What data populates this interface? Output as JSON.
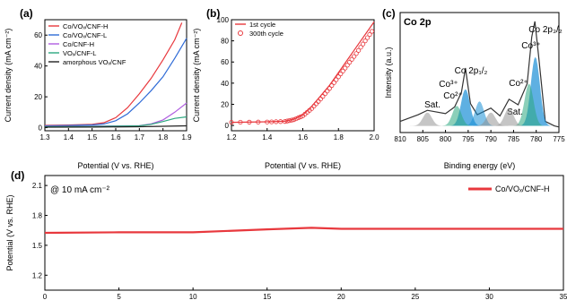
{
  "chart_data": [
    {
      "type": "line",
      "panel_label": "(a)",
      "xlabel": "Potential (V vs. RHE)",
      "ylabel": "Current density (mA cm⁻²)",
      "xlim": [
        1.3,
        1.9
      ],
      "ylim": [
        -2,
        70
      ],
      "xticks": [
        "1.3",
        "1.4",
        "1.5",
        "1.6",
        "1.7",
        "1.8",
        "1.9"
      ],
      "yticks": [
        "0",
        "20",
        "40",
        "60"
      ],
      "legend_position": "top-left",
      "series": [
        {
          "name": "Co/VOₓ/CNF-H",
          "color": "#e8383d",
          "x": [
            1.3,
            1.4,
            1.5,
            1.55,
            1.6,
            1.65,
            1.7,
            1.75,
            1.8,
            1.85,
            1.88
          ],
          "y": [
            1.5,
            1.7,
            2.2,
            3.2,
            6.5,
            13,
            22,
            32,
            44,
            57,
            68
          ]
        },
        {
          "name": "Co/VOₓ/CNF-L",
          "color": "#2f6bd6",
          "x": [
            1.3,
            1.4,
            1.5,
            1.55,
            1.6,
            1.65,
            1.7,
            1.75,
            1.8,
            1.85,
            1.9
          ],
          "y": [
            1.2,
            1.4,
            1.8,
            2.4,
            4.5,
            9,
            16,
            24,
            33,
            45,
            58
          ]
        },
        {
          "name": "Co/CNF-H",
          "color": "#b05ee0",
          "x": [
            1.3,
            1.5,
            1.7,
            1.75,
            1.8,
            1.85,
            1.9
          ],
          "y": [
            0.8,
            1.0,
            1.3,
            2.5,
            5,
            10,
            16
          ]
        },
        {
          "name": "VOₓ/CNF-L",
          "color": "#2ca87f",
          "x": [
            1.3,
            1.5,
            1.7,
            1.75,
            1.8,
            1.85,
            1.9
          ],
          "y": [
            0.6,
            0.8,
            1.2,
            2.2,
            4,
            6,
            7
          ]
        },
        {
          "name": "amorphous VOₓ/CNF",
          "color": "#222222",
          "x": [
            1.3,
            1.5,
            1.7,
            1.8,
            1.9
          ],
          "y": [
            0.3,
            0.4,
            0.6,
            0.9,
            1.2
          ]
        }
      ]
    },
    {
      "type": "line",
      "panel_label": "(b)",
      "xlabel": "Potential (V vs. RHE)",
      "ylabel": "Current density (mA cm⁻²)",
      "xlim": [
        1.2,
        2.0
      ],
      "ylim": [
        -5,
        100
      ],
      "xticks": [
        "1.2",
        "1.4",
        "1.6",
        "1.8",
        "2.0"
      ],
      "yticks": [
        "0",
        "20",
        "40",
        "60",
        "80",
        "100"
      ],
      "legend_position": "top-left",
      "series": [
        {
          "name": "1st cycle",
          "style": "line",
          "color": "#e8383d",
          "x": [
            1.2,
            1.4,
            1.5,
            1.55,
            1.6,
            1.65,
            1.7,
            1.75,
            1.8,
            1.85,
            1.9,
            1.95,
            2.0
          ],
          "y": [
            3,
            3.5,
            4,
            6,
            10,
            18,
            28,
            38,
            50,
            62,
            74,
            86,
            98
          ]
        },
        {
          "name": "300th cycle",
          "style": "open-circle",
          "color": "#e8383d",
          "x": [
            1.2,
            1.4,
            1.5,
            1.55,
            1.6,
            1.65,
            1.7,
            1.75,
            1.8,
            1.85,
            1.9,
            1.95,
            2.0
          ],
          "y": [
            3,
            3.3,
            3.8,
            5.5,
            9,
            16,
            25,
            35,
            46,
            57,
            68,
            80,
            92
          ]
        }
      ]
    },
    {
      "type": "line",
      "panel_label": "(c)",
      "title": "Co 2p",
      "xlabel": "Binding energy (eV)",
      "ylabel": "Intensity (a.u.)",
      "xlim": [
        810,
        775
      ],
      "xticks": [
        "810",
        "805",
        "800",
        "795",
        "790",
        "785",
        "780",
        "775"
      ],
      "annotations": [
        "Sat.",
        "Co 2p₁/₂",
        "Co³⁺",
        "Co²⁺",
        "Sat.",
        "Co 2p₃/₂",
        "Co³⁺",
        "Co²⁺"
      ],
      "series": [
        {
          "name": "raw",
          "color": "#333333",
          "x": [
            810,
            806,
            804,
            800,
            798,
            796.5,
            795.6,
            794.5,
            793,
            790,
            788,
            786,
            784,
            782,
            781,
            780.3,
            779.5,
            778,
            776,
            775
          ],
          "y": [
            0.1,
            0.16,
            0.2,
            0.17,
            0.23,
            0.36,
            0.58,
            0.26,
            0.16,
            0.22,
            0.15,
            0.3,
            0.25,
            0.44,
            0.86,
            1.0,
            0.7,
            0.1,
            0.06,
            0.05
          ]
        }
      ]
    },
    {
      "type": "line",
      "panel_label": "(d)",
      "title": "@ 10 mA cm⁻²",
      "ylabel": "Potential (V vs. RHE)",
      "xlim": [
        0,
        35
      ],
      "ylim": [
        1.05,
        2.2
      ],
      "xticks": [
        "0",
        "5",
        "10",
        "15",
        "20",
        "25",
        "30",
        "35"
      ],
      "yticks": [
        "1.2",
        "1.5",
        "1.8",
        "2.1"
      ],
      "legend_position": "top-right",
      "series": [
        {
          "name": "Co/VOₓ/CNF-H",
          "color": "#e8383d",
          "x": [
            0,
            5,
            10,
            15,
            18,
            20,
            25,
            30,
            35
          ],
          "y": [
            1.625,
            1.63,
            1.63,
            1.66,
            1.675,
            1.665,
            1.665,
            1.665,
            1.665
          ]
        }
      ]
    }
  ]
}
